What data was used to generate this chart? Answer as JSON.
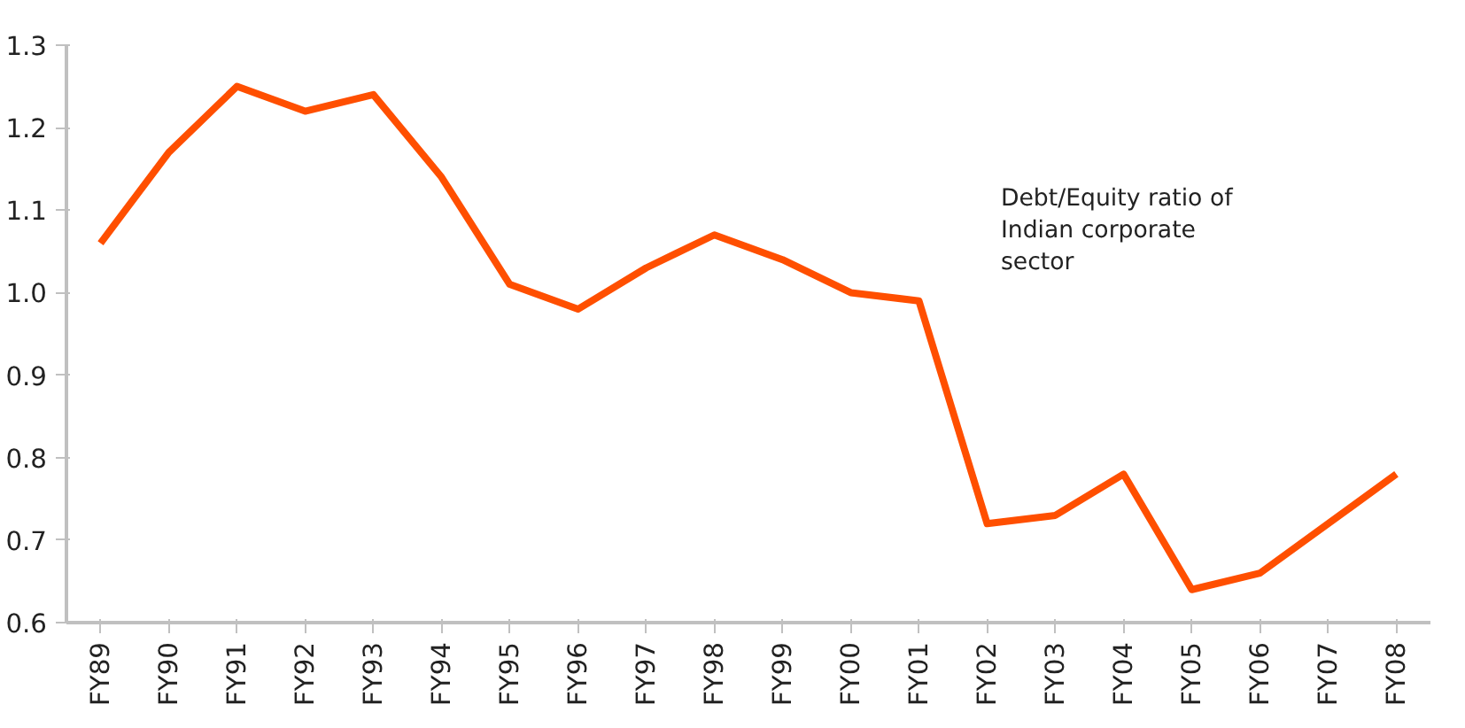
{
  "chart_data": {
    "type": "line",
    "categories": [
      "FY89",
      "FY90",
      "FY91",
      "FY92",
      "FY93",
      "FY94",
      "FY95",
      "FY96",
      "FY97",
      "FY98",
      "FY99",
      "FY00",
      "FY01",
      "FY02",
      "FY03",
      "FY04",
      "FY05",
      "FY06",
      "FY07",
      "FY08"
    ],
    "series": [
      {
        "color": "#ff4f00",
        "values": [
          1.06,
          1.17,
          1.25,
          1.22,
          1.24,
          1.14,
          1.01,
          0.98,
          1.03,
          1.07,
          1.04,
          1.0,
          0.99,
          0.72,
          0.73,
          0.78,
          0.64,
          0.66,
          0.72,
          0.78
        ]
      }
    ],
    "ylim": [
      0.6,
      1.3
    ],
    "yticks": [
      {
        "value": 0.6,
        "label": "0.6"
      },
      {
        "value": 0.7,
        "label": "0.7"
      },
      {
        "value": 0.8,
        "label": "0.8"
      },
      {
        "value": 0.9,
        "label": "0.9"
      },
      {
        "value": 1.0,
        "label": "1.0"
      },
      {
        "value": 1.1,
        "label": "1.1"
      },
      {
        "value": 1.2,
        "label": "1.2"
      },
      {
        "value": 1.3,
        "label": "1.3"
      }
    ],
    "grid": false,
    "marker": "none",
    "line_style": "solid",
    "annotations": [
      "Debt/Equity ratio of\nIndian corporate\nsector"
    ]
  }
}
